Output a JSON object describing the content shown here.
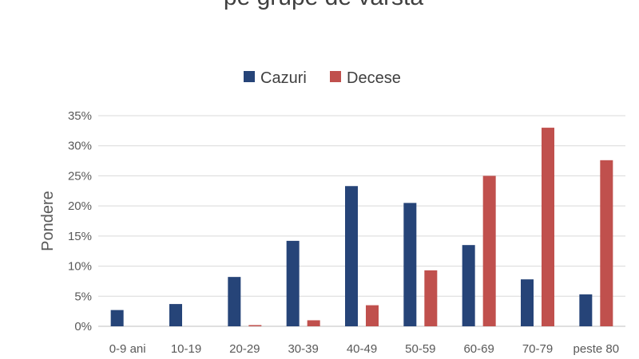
{
  "chart_data": {
    "type": "bar",
    "title": "pe grupe de vârstă",
    "ylabel": "Pondere",
    "xlabel": "",
    "categories": [
      "0-9 ani",
      "10-19",
      "20-29",
      "30-39",
      "40-49",
      "50-59",
      "60-69",
      "70-79",
      "peste 80"
    ],
    "series": [
      {
        "name": "Cazuri",
        "color": "#264478",
        "values": [
          2.7,
          3.7,
          8.2,
          14.2,
          23.3,
          20.5,
          13.5,
          7.8,
          5.3
        ]
      },
      {
        "name": "Decese",
        "color": "#C0504D",
        "values": [
          0.0,
          0.0,
          0.2,
          1.0,
          3.5,
          9.3,
          25.0,
          33.0,
          27.6
        ]
      }
    ],
    "ylim": [
      0,
      35
    ],
    "yticks": [
      "0%",
      "5%",
      "10%",
      "15%",
      "20%",
      "25%",
      "30%",
      "35%"
    ],
    "grid": true,
    "legend_position": "top"
  }
}
